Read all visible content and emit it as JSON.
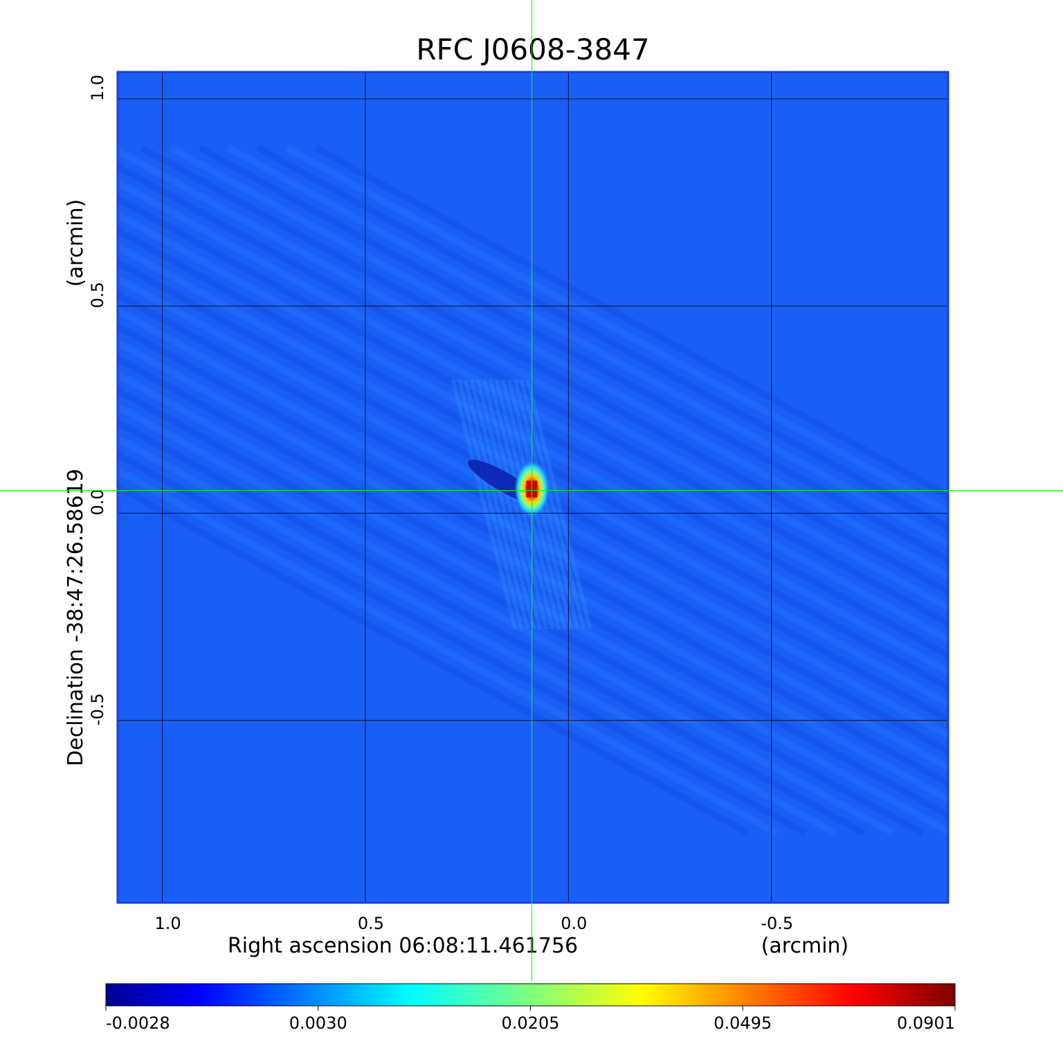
{
  "chart_data": {
    "type": "heatmap",
    "title": "RFC J0608-3847",
    "xlabel": "Right ascension  06:08:11.461756",
    "xunit": "(arcmin)",
    "ylabel": "Declination  -38:47:26.58619",
    "yunit": "(arcmin)",
    "x_ticks": [
      1.0,
      0.5,
      0.0,
      -0.5
    ],
    "x_tick_labels": [
      "1.0",
      "0.5",
      "0.0",
      "-0.5"
    ],
    "y_ticks": [
      1.0,
      0.5,
      0.0,
      -0.5
    ],
    "y_tick_labels": [
      "1.0",
      "0.5",
      "0.0",
      "-0.5"
    ],
    "xlim": [
      1.11,
      -0.935
    ],
    "ylim": [
      -0.94,
      1.065
    ],
    "grid": true,
    "crosshair": {
      "x": 0.09,
      "y": 0.055,
      "color": "#00ff00"
    },
    "peak": {
      "x": 0.09,
      "y": 0.055,
      "value": 0.0901
    },
    "colorbar": {
      "colormap": "jet",
      "tick_labels": [
        "-0.0028",
        "0.0030",
        "0.0205",
        "0.0495",
        "0.0901"
      ],
      "min": -0.0028,
      "max": 0.0901
    },
    "colors": {
      "title": "#1010c8",
      "background_map": "#1a5ff5",
      "frame": "#1a3fe0",
      "grid": "#101040",
      "crosshair": "#00ff00"
    }
  }
}
